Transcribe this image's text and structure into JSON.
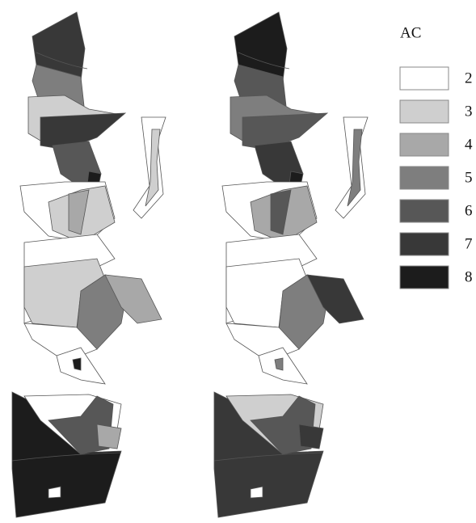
{
  "legend": {
    "title": "AC",
    "items": [
      {
        "label": "2",
        "color": "#ffffff"
      },
      {
        "label": "3",
        "color": "#cfcfcf"
      },
      {
        "label": "4",
        "color": "#a8a8a8"
      },
      {
        "label": "5",
        "color": "#7e7e7e"
      },
      {
        "label": "6",
        "color": "#575757"
      },
      {
        "label": "7",
        "color": "#383838"
      },
      {
        "label": "8",
        "color": "#1c1c1c"
      }
    ]
  }
}
